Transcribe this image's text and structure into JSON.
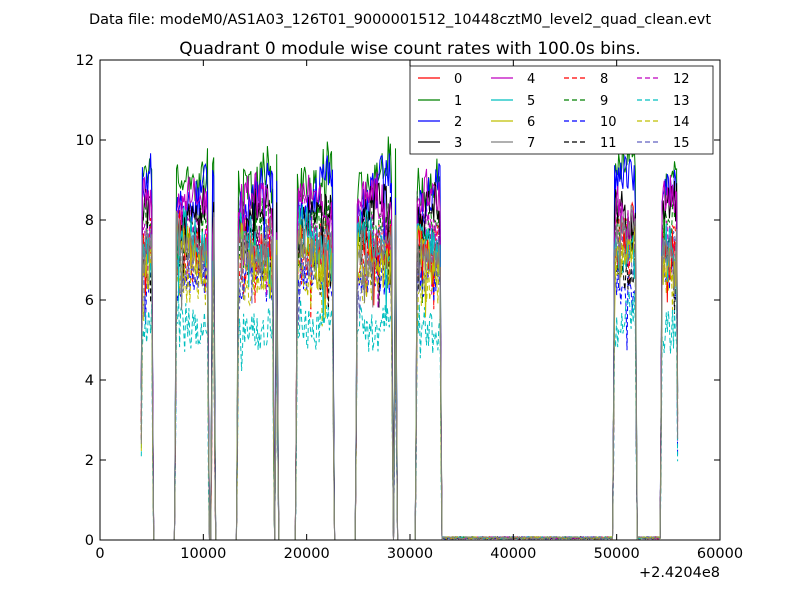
{
  "chart_data": {
    "type": "line",
    "suptitle": "Data file: modeM0/AS1A03_126T01_9000001512_10448cztM0_level2_quad_clean.evt",
    "title": "Quadrant 0 module wise count rates with 100.0s bins.",
    "xlabel": "",
    "ylabel": "",
    "xlim": [
      0,
      60000
    ],
    "ylim": [
      0,
      12
    ],
    "x_ticks": [
      0,
      10000,
      20000,
      30000,
      40000,
      50000,
      60000
    ],
    "x_tick_labels": [
      "0",
      "10000",
      "20000",
      "30000",
      "40000",
      "50000",
      "60000"
    ],
    "y_ticks": [
      0,
      2,
      4,
      6,
      8,
      10,
      12
    ],
    "y_tick_labels": [
      "0",
      "2",
      "4",
      "6",
      "8",
      "10",
      "12"
    ],
    "x_offset_label": "+2.4204e8",
    "grid": false,
    "legend_position": "top-right",
    "active_segments": [
      [
        4000,
        5100
      ],
      [
        7300,
        10500
      ],
      [
        10800,
        11100
      ],
      [
        13300,
        16800
      ],
      [
        17000,
        17200
      ],
      [
        19000,
        22600
      ],
      [
        24800,
        28300
      ],
      [
        28500,
        28700
      ],
      [
        30600,
        33000
      ],
      [
        49700,
        51900
      ],
      [
        54300,
        55900
      ]
    ],
    "near_zero_segments": [
      [
        33000,
        49700
      ],
      [
        51900,
        54300
      ]
    ],
    "series": [
      {
        "name": "0",
        "color": "#ff0000",
        "style": "solid",
        "mean_rate": 7.6
      },
      {
        "name": "1",
        "color": "#008000",
        "style": "solid",
        "mean_rate": 9.3
      },
      {
        "name": "2",
        "color": "#0000ff",
        "style": "solid",
        "mean_rate": 8.7
      },
      {
        "name": "3",
        "color": "#000000",
        "style": "solid",
        "mean_rate": 8.0
      },
      {
        "name": "4",
        "color": "#bf00bf",
        "style": "solid",
        "mean_rate": 8.3
      },
      {
        "name": "5",
        "color": "#00bfbf",
        "style": "solid",
        "mean_rate": 7.4
      },
      {
        "name": "6",
        "color": "#bfbf00",
        "style": "solid",
        "mean_rate": 7.2
      },
      {
        "name": "7",
        "color": "#808080",
        "style": "solid",
        "mean_rate": 7.5
      },
      {
        "name": "8",
        "color": "#ff0000",
        "style": "dashed",
        "mean_rate": 7.3
      },
      {
        "name": "9",
        "color": "#008000",
        "style": "dashed",
        "mean_rate": 7.6
      },
      {
        "name": "10",
        "color": "#0000ff",
        "style": "dashed",
        "mean_rate": 6.4
      },
      {
        "name": "11",
        "color": "#000000",
        "style": "dashed",
        "mean_rate": 7.1
      },
      {
        "name": "12",
        "color": "#bf00bf",
        "style": "dashed",
        "mean_rate": 7.8
      },
      {
        "name": "13",
        "color": "#00bfbf",
        "style": "dashed",
        "mean_rate": 5.5
      },
      {
        "name": "14",
        "color": "#bfbf00",
        "style": "dashed",
        "mean_rate": 6.8
      },
      {
        "name": "15",
        "color": "#6060c0",
        "style": "dashed",
        "mean_rate": 7.0
      }
    ]
  }
}
